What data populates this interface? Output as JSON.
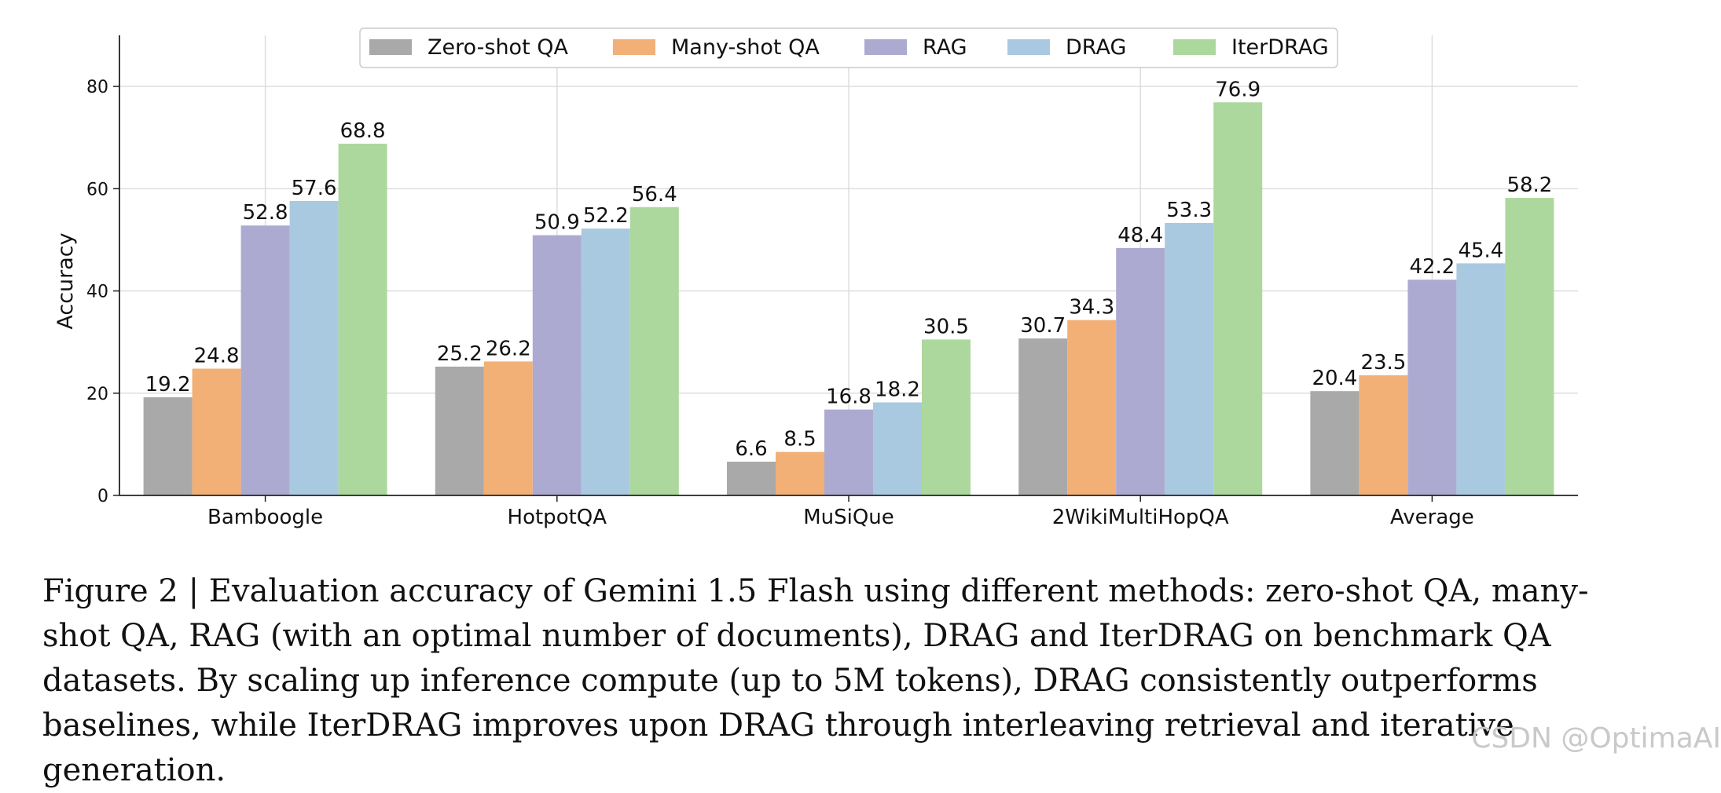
{
  "chart_data": {
    "type": "bar",
    "categories": [
      "Bamboogle",
      "HotpotQA",
      "MuSiQue",
      "2WikiMultiHopQA",
      "Average"
    ],
    "series": [
      {
        "name": "Zero-shot QA",
        "color": "#a9a9a9",
        "values": [
          19.2,
          25.2,
          6.6,
          30.7,
          20.4
        ],
        "labels": [
          "19.2",
          "25.2",
          "6.6",
          "30.7",
          "20.4"
        ]
      },
      {
        "name": "Many-shot QA",
        "color": "#f2b077",
        "values": [
          24.8,
          26.2,
          8.5,
          34.3,
          23.5
        ],
        "labels": [
          "24.8",
          "26.2",
          "8.5",
          "34.3",
          "23.5"
        ]
      },
      {
        "name": "RAG",
        "color": "#adaad1",
        "values": [
          52.8,
          50.9,
          16.8,
          48.4,
          42.2
        ],
        "labels": [
          "52.8",
          "50.9",
          "16.8",
          "48.4",
          "42.2"
        ]
      },
      {
        "name": "DRAG",
        "color": "#a9c9e0",
        "values": [
          57.6,
          52.2,
          18.2,
          53.3,
          45.4
        ],
        "labels": [
          "57.6",
          "52.2",
          "18.2",
          "53.3",
          "45.4"
        ]
      },
      {
        "name": "IterDRAG",
        "color": "#acd89e",
        "values": [
          68.8,
          56.4,
          30.5,
          76.9,
          58.2
        ],
        "labels": [
          "68.8",
          "56.4",
          "30.5",
          "76.9",
          "58.2"
        ]
      }
    ],
    "ylabel": "Accuracy",
    "xlabel": "",
    "ylim": [
      0,
      90
    ],
    "yticks": [
      "0",
      "20",
      "40",
      "60",
      "80"
    ],
    "grid": true,
    "legend_position": "top-center"
  },
  "caption": "Figure 2 | Evaluation accuracy of Gemini 1.5 Flash using different methods: zero-shot QA, many-shot QA, RAG (with an optimal number of documents), DRAG and IterDRAG on benchmark QA datasets. By scaling up inference compute (up to 5M tokens), DRAG consistently outperforms baselines, while IterDRAG improves upon DRAG through interleaving retrieval and iterative generation.",
  "watermark": "CSDN @OptimaAI"
}
